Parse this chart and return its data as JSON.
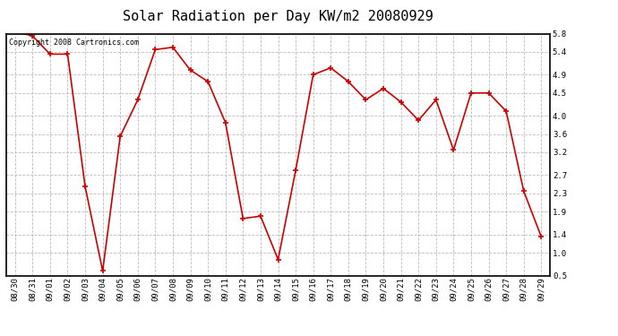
{
  "title": "Solar Radiation per Day KW/m2 20080929",
  "copyright_text": "Copyright 2008 Cartronics.com",
  "dates": [
    "08/30",
    "08/31",
    "09/01",
    "09/02",
    "09/03",
    "09/04",
    "09/05",
    "09/06",
    "09/07",
    "09/08",
    "09/09",
    "09/10",
    "09/11",
    "09/12",
    "09/13",
    "09/14",
    "09/15",
    "09/16",
    "09/17",
    "09/18",
    "09/19",
    "09/20",
    "09/21",
    "09/22",
    "09/23",
    "09/24",
    "09/25",
    "09/26",
    "09/27",
    "09/28",
    "09/29"
  ],
  "values": [
    5.85,
    5.75,
    5.35,
    5.35,
    2.45,
    0.6,
    3.55,
    4.35,
    5.45,
    5.5,
    5.0,
    4.75,
    3.85,
    1.75,
    1.8,
    0.85,
    2.8,
    4.9,
    5.05,
    4.75,
    4.35,
    4.6,
    4.3,
    3.9,
    4.35,
    3.25,
    4.5,
    4.5,
    4.1,
    2.35,
    1.35
  ],
  "line_color": "#cc0000",
  "marker": "+",
  "marker_color": "#cc0000",
  "marker_size": 4,
  "bg_color": "#ffffff",
  "plot_bg_color": "#ffffff",
  "grid_color": "#bbbbbb",
  "grid_style": "--",
  "ylim": [
    0.5,
    5.8
  ],
  "yticks": [
    0.5,
    1.0,
    1.4,
    1.9,
    2.3,
    2.7,
    3.2,
    3.6,
    4.0,
    4.5,
    4.9,
    5.4,
    5.8
  ],
  "title_fontsize": 11,
  "tick_fontsize": 6.5,
  "copyright_fontsize": 6
}
